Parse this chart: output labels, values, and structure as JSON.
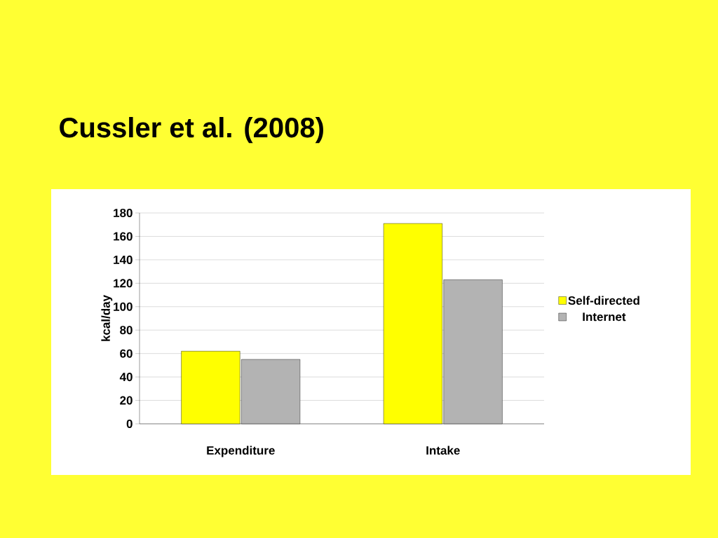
{
  "chart_data": {
    "type": "bar",
    "title": "Cussler et al. (2008)",
    "ylabel": "kcal/day",
    "categories": [
      "Expenditure",
      "Intake"
    ],
    "series": [
      {
        "name": "Self-directed",
        "color": "#ffff00",
        "values": [
          62,
          171
        ]
      },
      {
        "name": "Internet",
        "color": "#b3b3b3",
        "values": [
          55,
          123
        ]
      }
    ],
    "ylim": [
      0,
      180
    ],
    "yticks": [
      0,
      20,
      40,
      60,
      80,
      100,
      120,
      140,
      160,
      180
    ],
    "grid": "y",
    "legend": "right"
  }
}
